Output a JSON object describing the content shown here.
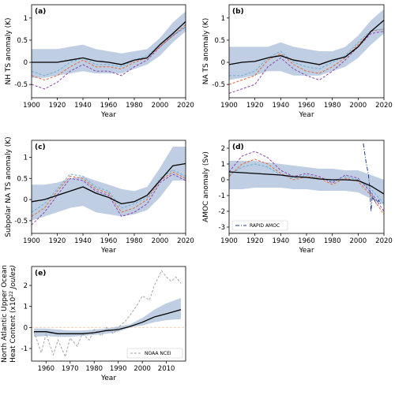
{
  "chart_data": [
    {
      "panel": "(a)",
      "type": "line",
      "xlabel": "Year",
      "ylabel": "NH TS anomaly (K)",
      "xlim": [
        1900,
        2020
      ],
      "ylim": [
        -0.8,
        1.3
      ],
      "xticks": [
        1900,
        1920,
        1940,
        1960,
        1980,
        2000,
        2020
      ],
      "yticks": [
        -0.5,
        0.0,
        0.5,
        1.0
      ],
      "band": {
        "x": [
          1900,
          1910,
          1920,
          1930,
          1940,
          1950,
          1960,
          1970,
          1980,
          1990,
          2000,
          2010,
          2020
        ],
        "lower": [
          -0.35,
          -0.35,
          -0.3,
          -0.25,
          -0.2,
          -0.25,
          -0.25,
          -0.25,
          -0.15,
          -0.05,
          0.15,
          0.45,
          0.7
        ],
        "upper": [
          0.3,
          0.3,
          0.3,
          0.35,
          0.4,
          0.3,
          0.25,
          0.2,
          0.25,
          0.3,
          0.55,
          0.9,
          1.15
        ]
      },
      "mean": {
        "x": [
          1900,
          1910,
          1920,
          1930,
          1940,
          1950,
          1960,
          1970,
          1980,
          1990,
          2000,
          2010,
          2020
        ],
        "y": [
          0.0,
          0.0,
          0.0,
          0.05,
          0.1,
          0.03,
          0.0,
          -0.05,
          0.05,
          0.1,
          0.4,
          0.65,
          0.92
        ]
      },
      "series": [
        {
          "color": "#8e44ad",
          "style": "dashed",
          "x": [
            1900,
            1910,
            1920,
            1930,
            1940,
            1950,
            1960,
            1970,
            1980,
            1990,
            2000,
            2010,
            2020
          ],
          "y": [
            -0.5,
            -0.6,
            -0.45,
            -0.2,
            -0.05,
            -0.2,
            -0.2,
            -0.3,
            -0.1,
            0.05,
            0.35,
            0.6,
            0.8
          ]
        },
        {
          "color": "#e06a3a",
          "style": "dashed",
          "x": [
            1900,
            1910,
            1920,
            1930,
            1940,
            1950,
            1960,
            1970,
            1980,
            1990,
            2000,
            2010,
            2020
          ],
          "y": [
            -0.3,
            -0.4,
            -0.3,
            -0.1,
            0.05,
            -0.1,
            -0.1,
            -0.15,
            0.0,
            0.1,
            0.35,
            0.6,
            0.85
          ]
        },
        {
          "color": "#6aaed6",
          "style": "dashed",
          "x": [
            1900,
            1910,
            1920,
            1930,
            1940,
            1950,
            1960,
            1970,
            1980,
            1990,
            2000,
            2010,
            2020
          ],
          "y": [
            -0.2,
            -0.3,
            -0.2,
            0.0,
            0.1,
            -0.05,
            -0.05,
            -0.1,
            0.05,
            0.15,
            0.4,
            0.62,
            0.8
          ]
        }
      ]
    },
    {
      "panel": "(b)",
      "type": "line",
      "xlabel": "Year",
      "ylabel": "NA TS anomaly (K)",
      "xlim": [
        1900,
        2020
      ],
      "ylim": [
        -0.8,
        1.3
      ],
      "xticks": [
        1900,
        1920,
        1940,
        1960,
        1980,
        2000,
        2020
      ],
      "yticks": [
        -0.5,
        0.0,
        0.5,
        1.0
      ],
      "band": {
        "x": [
          1900,
          1910,
          1920,
          1930,
          1940,
          1950,
          1960,
          1970,
          1980,
          1990,
          2000,
          2010,
          2020
        ],
        "lower": [
          -0.4,
          -0.35,
          -0.3,
          -0.2,
          -0.2,
          -0.3,
          -0.3,
          -0.3,
          -0.2,
          -0.1,
          0.1,
          0.4,
          0.65
        ],
        "upper": [
          0.35,
          0.35,
          0.35,
          0.35,
          0.45,
          0.35,
          0.3,
          0.25,
          0.25,
          0.35,
          0.6,
          0.95,
          1.2
        ]
      },
      "mean": {
        "x": [
          1900,
          1910,
          1920,
          1930,
          1940,
          1950,
          1960,
          1970,
          1980,
          1990,
          2000,
          2010,
          2020
        ],
        "y": [
          -0.05,
          0.0,
          0.02,
          0.1,
          0.15,
          0.05,
          0.0,
          -0.05,
          0.05,
          0.12,
          0.35,
          0.7,
          0.95
        ]
      },
      "series": [
        {
          "color": "#8e44ad",
          "style": "dashed",
          "x": [
            1900,
            1910,
            1920,
            1930,
            1940,
            1950,
            1960,
            1970,
            1980,
            1990,
            2000,
            2010,
            2020
          ],
          "y": [
            -0.7,
            -0.6,
            -0.5,
            -0.1,
            0.1,
            -0.15,
            -0.3,
            -0.4,
            -0.2,
            0.05,
            0.35,
            0.65,
            0.7
          ]
        },
        {
          "color": "#e06a3a",
          "style": "dashed",
          "x": [
            1900,
            1910,
            1920,
            1930,
            1940,
            1950,
            1960,
            1970,
            1980,
            1990,
            2000,
            2010,
            2020
          ],
          "y": [
            -0.5,
            -0.4,
            -0.3,
            0.05,
            0.2,
            -0.05,
            -0.2,
            -0.25,
            -0.1,
            0.1,
            0.4,
            0.7,
            0.75
          ]
        },
        {
          "color": "#6aaed6",
          "style": "dashed",
          "x": [
            1900,
            1910,
            1920,
            1930,
            1940,
            1950,
            1960,
            1970,
            1980,
            1990,
            2000,
            2010,
            2020
          ],
          "y": [
            -0.3,
            -0.3,
            -0.2,
            0.1,
            0.25,
            0.0,
            -0.1,
            -0.15,
            0.0,
            0.15,
            0.45,
            0.72,
            0.75
          ]
        }
      ]
    },
    {
      "panel": "(c)",
      "type": "line",
      "xlabel": "Year",
      "ylabel": "Subpolar NA TS anomaly (K)",
      "xlim": [
        1900,
        2020
      ],
      "ylim": [
        -0.8,
        1.4
      ],
      "xticks": [
        1900,
        1920,
        1940,
        1960,
        1980,
        2000,
        2020
      ],
      "yticks": [
        -0.5,
        0.0,
        0.5,
        1.0
      ],
      "band": {
        "x": [
          1900,
          1910,
          1920,
          1930,
          1940,
          1950,
          1960,
          1970,
          1980,
          1990,
          2000,
          2010,
          2020
        ],
        "lower": [
          -0.5,
          -0.4,
          -0.3,
          -0.2,
          -0.15,
          -0.3,
          -0.35,
          -0.4,
          -0.35,
          -0.25,
          0.05,
          0.45,
          0.45
        ],
        "upper": [
          0.35,
          0.35,
          0.4,
          0.5,
          0.55,
          0.45,
          0.35,
          0.25,
          0.2,
          0.3,
          0.75,
          1.25,
          1.25
        ]
      },
      "mean": {
        "x": [
          1900,
          1910,
          1920,
          1930,
          1940,
          1950,
          1960,
          1970,
          1980,
          1990,
          2000,
          2010,
          2020
        ],
        "y": [
          -0.05,
          0.0,
          0.1,
          0.2,
          0.3,
          0.15,
          0.05,
          -0.1,
          -0.05,
          0.1,
          0.45,
          0.8,
          0.85
        ]
      },
      "series": [
        {
          "color": "#8e44ad",
          "style": "dashed",
          "x": [
            1900,
            1910,
            1920,
            1930,
            1940,
            1950,
            1960,
            1970,
            1980,
            1990,
            2000,
            2010,
            2020
          ],
          "y": [
            -0.6,
            -0.3,
            0.1,
            0.5,
            0.45,
            0.2,
            0.1,
            -0.4,
            -0.3,
            -0.1,
            0.4,
            0.6,
            0.45
          ]
        },
        {
          "color": "#e06a3a",
          "style": "dashed",
          "x": [
            1900,
            1910,
            1920,
            1930,
            1940,
            1950,
            1960,
            1970,
            1980,
            1990,
            2000,
            2010,
            2020
          ],
          "y": [
            -0.4,
            -0.2,
            0.2,
            0.55,
            0.5,
            0.25,
            0.15,
            -0.3,
            -0.2,
            0.0,
            0.45,
            0.65,
            0.5
          ]
        },
        {
          "color": "#6aaed6",
          "style": "dashed",
          "x": [
            1900,
            1910,
            1920,
            1930,
            1940,
            1950,
            1960,
            1970,
            1980,
            1990,
            2000,
            2010,
            2020
          ],
          "y": [
            -0.3,
            -0.1,
            0.25,
            0.6,
            0.55,
            0.3,
            0.2,
            -0.2,
            -0.1,
            0.05,
            0.5,
            0.7,
            0.55
          ]
        }
      ]
    },
    {
      "panel": "(d)",
      "type": "line",
      "xlabel": "Year",
      "ylabel": "AMOC anomaly (Sv)",
      "xlim": [
        1900,
        2020
      ],
      "ylim": [
        -3.4,
        2.5
      ],
      "xticks": [
        1900,
        1920,
        1940,
        1960,
        1980,
        2000,
        2020
      ],
      "yticks": [
        -3,
        -2,
        -1,
        0,
        1,
        2
      ],
      "band": {
        "x": [
          1900,
          1910,
          1920,
          1930,
          1940,
          1950,
          1960,
          1970,
          1980,
          1990,
          2000,
          2010,
          2020
        ],
        "lower": [
          -0.6,
          -0.6,
          -0.5,
          -0.5,
          -0.5,
          -0.6,
          -0.6,
          -0.7,
          -0.7,
          -0.7,
          -0.8,
          -1.2,
          -1.6
        ],
        "upper": [
          1.2,
          1.2,
          1.2,
          1.1,
          1.0,
          0.9,
          0.8,
          0.7,
          0.7,
          0.6,
          0.6,
          0.3,
          0.0
        ]
      },
      "mean": {
        "x": [
          1900,
          1910,
          1920,
          1930,
          1940,
          1950,
          1960,
          1970,
          1980,
          1990,
          2000,
          2010,
          2020
        ],
        "y": [
          0.5,
          0.45,
          0.4,
          0.35,
          0.3,
          0.2,
          0.15,
          0.05,
          0.0,
          0.0,
          -0.05,
          -0.4,
          -0.9
        ]
      },
      "series": [
        {
          "color": "#8e44ad",
          "style": "dashed",
          "x": [
            1900,
            1910,
            1920,
            1930,
            1940,
            1950,
            1960,
            1970,
            1980,
            1990,
            2000,
            2010,
            2020
          ],
          "y": [
            0.5,
            1.5,
            1.8,
            1.4,
            0.6,
            0.2,
            0.4,
            0.2,
            -0.2,
            0.3,
            0.1,
            -0.8,
            -2.0
          ]
        },
        {
          "color": "#e06a3a",
          "style": "dashed",
          "x": [
            1900,
            1910,
            1920,
            1930,
            1940,
            1950,
            1960,
            1970,
            1980,
            1990,
            2000,
            2010,
            2020
          ],
          "y": [
            0.2,
            1.0,
            1.3,
            1.0,
            0.4,
            0.0,
            0.2,
            0.1,
            -0.3,
            0.1,
            -0.1,
            -1.0,
            -2.2
          ]
        },
        {
          "color": "#6aaed6",
          "style": "dashed",
          "x": [
            1900,
            1910,
            1920,
            1930,
            1940,
            1950,
            1960,
            1970,
            1980,
            1990,
            2000,
            2010,
            2020
          ],
          "y": [
            0.3,
            0.8,
            1.0,
            0.8,
            0.3,
            0.1,
            0.3,
            0.1,
            -0.1,
            0.2,
            0.0,
            -0.6,
            -1.5
          ]
        },
        {
          "name": "RAPID AMOC",
          "color": "#1f3a8a",
          "style": "dashdot",
          "x": [
            2004,
            2006,
            2008,
            2009,
            2010,
            2011,
            2012,
            2014,
            2016,
            2018
          ],
          "y": [
            2.3,
            1.2,
            0.3,
            -0.5,
            -2.0,
            -1.0,
            -1.2,
            -1.5,
            -1.3,
            -1.6
          ]
        }
      ],
      "legend": {
        "placement": "bottom-left",
        "entries": [
          "RAPID AMOC"
        ]
      }
    },
    {
      "panel": "(e)",
      "type": "line",
      "xlabel": "Year",
      "ylabel_lines": [
        "North Atlantic Upper Ocean",
        "Heat Content (x10",
        "22",
        " Joules)"
      ],
      "xlim": [
        1954,
        2018
      ],
      "ylim": [
        -1.6,
        2.9
      ],
      "xticks": [
        1960,
        1970,
        1980,
        1990,
        2000,
        2010
      ],
      "yticks": [
        -1,
        0,
        1,
        2
      ],
      "band": {
        "x": [
          1955,
          1960,
          1965,
          1970,
          1975,
          1980,
          1985,
          1990,
          1995,
          2000,
          2005,
          2010,
          2016
        ],
        "lower": [
          -0.45,
          -0.4,
          -0.45,
          -0.45,
          -0.4,
          -0.35,
          -0.3,
          -0.2,
          0.0,
          0.1,
          0.25,
          0.35,
          0.4
        ],
        "upper": [
          -0.05,
          -0.05,
          -0.1,
          -0.15,
          -0.15,
          -0.1,
          -0.05,
          0.05,
          0.15,
          0.45,
          0.85,
          1.15,
          1.4
        ]
      },
      "mean": {
        "x": [
          1955,
          1960,
          1965,
          1970,
          1975,
          1980,
          1985,
          1990,
          1995,
          2000,
          2005,
          2010,
          2016
        ],
        "y": [
          -0.2,
          -0.2,
          -0.3,
          -0.3,
          -0.3,
          -0.25,
          -0.15,
          -0.1,
          0.05,
          0.25,
          0.5,
          0.65,
          0.85
        ]
      },
      "series": [
        {
          "name": "NOAA NCEI",
          "color": "#a6a6a6",
          "style": "dashed",
          "x": [
            1955,
            1958,
            1960,
            1963,
            1965,
            1968,
            1970,
            1973,
            1975,
            1978,
            1980,
            1983,
            1985,
            1988,
            1990,
            1993,
            1995,
            1998,
            2000,
            2003,
            2005,
            2008,
            2010,
            2012,
            2014,
            2016
          ],
          "y": [
            -0.2,
            -1.2,
            -0.3,
            -1.3,
            -0.6,
            -1.4,
            -0.5,
            -0.9,
            -0.3,
            -0.6,
            -0.1,
            -0.4,
            0.0,
            -0.3,
            0.0,
            0.3,
            0.6,
            1.1,
            1.5,
            1.3,
            2.0,
            2.7,
            2.4,
            2.2,
            2.4,
            2.1
          ]
        }
      ],
      "legend": {
        "placement": "bottom-right",
        "entries": [
          "NOAA NCEI"
        ]
      }
    }
  ]
}
